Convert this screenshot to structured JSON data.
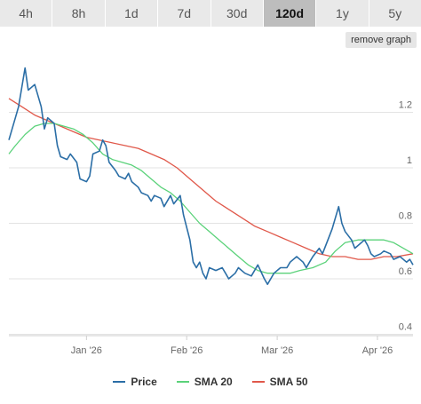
{
  "tabs": [
    {
      "label": "4h",
      "active": false
    },
    {
      "label": "8h",
      "active": false
    },
    {
      "label": "1d",
      "active": false
    },
    {
      "label": "7d",
      "active": false
    },
    {
      "label": "30d",
      "active": false
    },
    {
      "label": "120d",
      "active": true
    },
    {
      "label": "1y",
      "active": false
    },
    {
      "label": "5y",
      "active": false
    }
  ],
  "remove_graph_label": "remove graph",
  "colors": {
    "price": "#2b6ea6",
    "sma20": "#5bd27a",
    "sma50": "#e0584a",
    "grid": "#e3e3e3"
  },
  "chart_data": {
    "type": "line",
    "y_ticks": [
      0.4,
      0.6,
      0.8,
      1.0,
      1.2
    ],
    "y_tick_labels": [
      "0.4",
      "0.6",
      "0.8",
      "1",
      "1.2"
    ],
    "ylim": [
      0.395,
      1.4
    ],
    "xlim": [
      "2025-12-08",
      "2026-04-12"
    ],
    "x_ticks": [
      {
        "date": "2026-01-01",
        "label": "Jan '26"
      },
      {
        "date": "2026-02-01",
        "label": "Feb '26"
      },
      {
        "date": "2026-03-01",
        "label": "Mar '26"
      },
      {
        "date": "2026-04-01",
        "label": "Apr '26"
      }
    ],
    "grid": true,
    "legend_position": "bottom",
    "series": [
      {
        "name": "Price",
        "color": "#2b6ea6",
        "points": [
          [
            "2025-12-08",
            1.1
          ],
          [
            "2025-12-10",
            1.18
          ],
          [
            "2025-12-11",
            1.22
          ],
          [
            "2025-12-13",
            1.36
          ],
          [
            "2025-12-14",
            1.28
          ],
          [
            "2025-12-16",
            1.3
          ],
          [
            "2025-12-18",
            1.22
          ],
          [
            "2025-12-19",
            1.14
          ],
          [
            "2025-12-20",
            1.18
          ],
          [
            "2025-12-22",
            1.16
          ],
          [
            "2025-12-23",
            1.08
          ],
          [
            "2025-12-24",
            1.04
          ],
          [
            "2025-12-26",
            1.03
          ],
          [
            "2025-12-27",
            1.05
          ],
          [
            "2025-12-29",
            1.02
          ],
          [
            "2025-12-30",
            0.96
          ],
          [
            "2026-01-01",
            0.95
          ],
          [
            "2026-01-02",
            0.97
          ],
          [
            "2026-01-03",
            1.05
          ],
          [
            "2026-01-05",
            1.06
          ],
          [
            "2026-01-06",
            1.1
          ],
          [
            "2026-01-07",
            1.08
          ],
          [
            "2026-01-08",
            1.02
          ],
          [
            "2026-01-10",
            0.99
          ],
          [
            "2026-01-11",
            0.97
          ],
          [
            "2026-01-13",
            0.96
          ],
          [
            "2026-01-14",
            0.98
          ],
          [
            "2026-01-15",
            0.95
          ],
          [
            "2026-01-17",
            0.93
          ],
          [
            "2026-01-18",
            0.91
          ],
          [
            "2026-01-20",
            0.9
          ],
          [
            "2026-01-21",
            0.88
          ],
          [
            "2026-01-22",
            0.9
          ],
          [
            "2026-01-24",
            0.89
          ],
          [
            "2026-01-25",
            0.86
          ],
          [
            "2026-01-27",
            0.9
          ],
          [
            "2026-01-28",
            0.87
          ],
          [
            "2026-01-30",
            0.9
          ],
          [
            "2026-01-31",
            0.83
          ],
          [
            "2026-02-02",
            0.74
          ],
          [
            "2026-02-03",
            0.66
          ],
          [
            "2026-02-04",
            0.64
          ],
          [
            "2026-02-05",
            0.66
          ],
          [
            "2026-02-06",
            0.62
          ],
          [
            "2026-02-07",
            0.6
          ],
          [
            "2026-02-08",
            0.64
          ],
          [
            "2026-02-10",
            0.63
          ],
          [
            "2026-02-12",
            0.64
          ],
          [
            "2026-02-13",
            0.62
          ],
          [
            "2026-02-14",
            0.6
          ],
          [
            "2026-02-16",
            0.62
          ],
          [
            "2026-02-17",
            0.64
          ],
          [
            "2026-02-19",
            0.62
          ],
          [
            "2026-02-21",
            0.61
          ],
          [
            "2026-02-23",
            0.65
          ],
          [
            "2026-02-25",
            0.6
          ],
          [
            "2026-02-26",
            0.58
          ],
          [
            "2026-02-27",
            0.6
          ],
          [
            "2026-02-28",
            0.62
          ],
          [
            "2026-03-02",
            0.64
          ],
          [
            "2026-03-04",
            0.64
          ],
          [
            "2026-03-05",
            0.66
          ],
          [
            "2026-03-07",
            0.68
          ],
          [
            "2026-03-09",
            0.66
          ],
          [
            "2026-03-10",
            0.64
          ],
          [
            "2026-03-11",
            0.66
          ],
          [
            "2026-03-12",
            0.68
          ],
          [
            "2026-03-14",
            0.71
          ],
          [
            "2026-03-15",
            0.69
          ],
          [
            "2026-03-17",
            0.75
          ],
          [
            "2026-03-18",
            0.78
          ],
          [
            "2026-03-20",
            0.86
          ],
          [
            "2026-03-21",
            0.8
          ],
          [
            "2026-03-22",
            0.77
          ],
          [
            "2026-03-24",
            0.74
          ],
          [
            "2026-03-25",
            0.71
          ],
          [
            "2026-03-26",
            0.72
          ],
          [
            "2026-03-28",
            0.74
          ],
          [
            "2026-03-29",
            0.72
          ],
          [
            "2026-03-30",
            0.69
          ],
          [
            "2026-03-31",
            0.68
          ],
          [
            "2026-04-02",
            0.69
          ],
          [
            "2026-04-03",
            0.7
          ],
          [
            "2026-04-05",
            0.69
          ],
          [
            "2026-04-06",
            0.67
          ],
          [
            "2026-04-08",
            0.68
          ],
          [
            "2026-04-10",
            0.66
          ],
          [
            "2026-04-11",
            0.67
          ],
          [
            "2026-04-12",
            0.65
          ]
        ]
      },
      {
        "name": "SMA 20",
        "color": "#5bd27a",
        "points": [
          [
            "2025-12-08",
            1.05
          ],
          [
            "2025-12-10",
            1.08
          ],
          [
            "2025-12-13",
            1.12
          ],
          [
            "2025-12-16",
            1.15
          ],
          [
            "2025-12-19",
            1.16
          ],
          [
            "2025-12-22",
            1.16
          ],
          [
            "2025-12-25",
            1.15
          ],
          [
            "2025-12-28",
            1.14
          ],
          [
            "2025-12-31",
            1.12
          ],
          [
            "2026-01-03",
            1.09
          ],
          [
            "2026-01-06",
            1.05
          ],
          [
            "2026-01-09",
            1.03
          ],
          [
            "2026-01-12",
            1.02
          ],
          [
            "2026-01-15",
            1.01
          ],
          [
            "2026-01-18",
            0.99
          ],
          [
            "2026-01-21",
            0.96
          ],
          [
            "2026-01-24",
            0.93
          ],
          [
            "2026-01-27",
            0.91
          ],
          [
            "2026-01-30",
            0.88
          ],
          [
            "2026-02-02",
            0.84
          ],
          [
            "2026-02-05",
            0.8
          ],
          [
            "2026-02-08",
            0.77
          ],
          [
            "2026-02-11",
            0.74
          ],
          [
            "2026-02-14",
            0.71
          ],
          [
            "2026-02-17",
            0.68
          ],
          [
            "2026-02-20",
            0.65
          ],
          [
            "2026-02-23",
            0.63
          ],
          [
            "2026-02-26",
            0.62
          ],
          [
            "2026-03-01",
            0.62
          ],
          [
            "2026-03-05",
            0.62
          ],
          [
            "2026-03-08",
            0.63
          ],
          [
            "2026-03-12",
            0.64
          ],
          [
            "2026-03-16",
            0.66
          ],
          [
            "2026-03-19",
            0.7
          ],
          [
            "2026-03-22",
            0.73
          ],
          [
            "2026-03-26",
            0.74
          ],
          [
            "2026-03-30",
            0.74
          ],
          [
            "2026-04-03",
            0.74
          ],
          [
            "2026-04-06",
            0.73
          ],
          [
            "2026-04-09",
            0.71
          ],
          [
            "2026-04-12",
            0.69
          ]
        ]
      },
      {
        "name": "SMA 50",
        "color": "#e0584a",
        "points": [
          [
            "2025-12-08",
            1.25
          ],
          [
            "2025-12-12",
            1.22
          ],
          [
            "2025-12-16",
            1.19
          ],
          [
            "2025-12-20",
            1.17
          ],
          [
            "2025-12-24",
            1.15
          ],
          [
            "2025-12-28",
            1.13
          ],
          [
            "2026-01-01",
            1.11
          ],
          [
            "2026-01-05",
            1.1
          ],
          [
            "2026-01-09",
            1.09
          ],
          [
            "2026-01-13",
            1.08
          ],
          [
            "2026-01-17",
            1.07
          ],
          [
            "2026-01-21",
            1.05
          ],
          [
            "2026-01-25",
            1.03
          ],
          [
            "2026-01-29",
            1.0
          ],
          [
            "2026-02-02",
            0.96
          ],
          [
            "2026-02-06",
            0.92
          ],
          [
            "2026-02-10",
            0.88
          ],
          [
            "2026-02-14",
            0.85
          ],
          [
            "2026-02-18",
            0.82
          ],
          [
            "2026-02-22",
            0.79
          ],
          [
            "2026-02-26",
            0.77
          ],
          [
            "2026-03-02",
            0.75
          ],
          [
            "2026-03-06",
            0.73
          ],
          [
            "2026-03-10",
            0.71
          ],
          [
            "2026-03-14",
            0.69
          ],
          [
            "2026-03-18",
            0.68
          ],
          [
            "2026-03-22",
            0.68
          ],
          [
            "2026-03-26",
            0.67
          ],
          [
            "2026-03-30",
            0.67
          ],
          [
            "2026-04-03",
            0.68
          ],
          [
            "2026-04-07",
            0.68
          ],
          [
            "2026-04-12",
            0.69
          ]
        ]
      }
    ]
  }
}
